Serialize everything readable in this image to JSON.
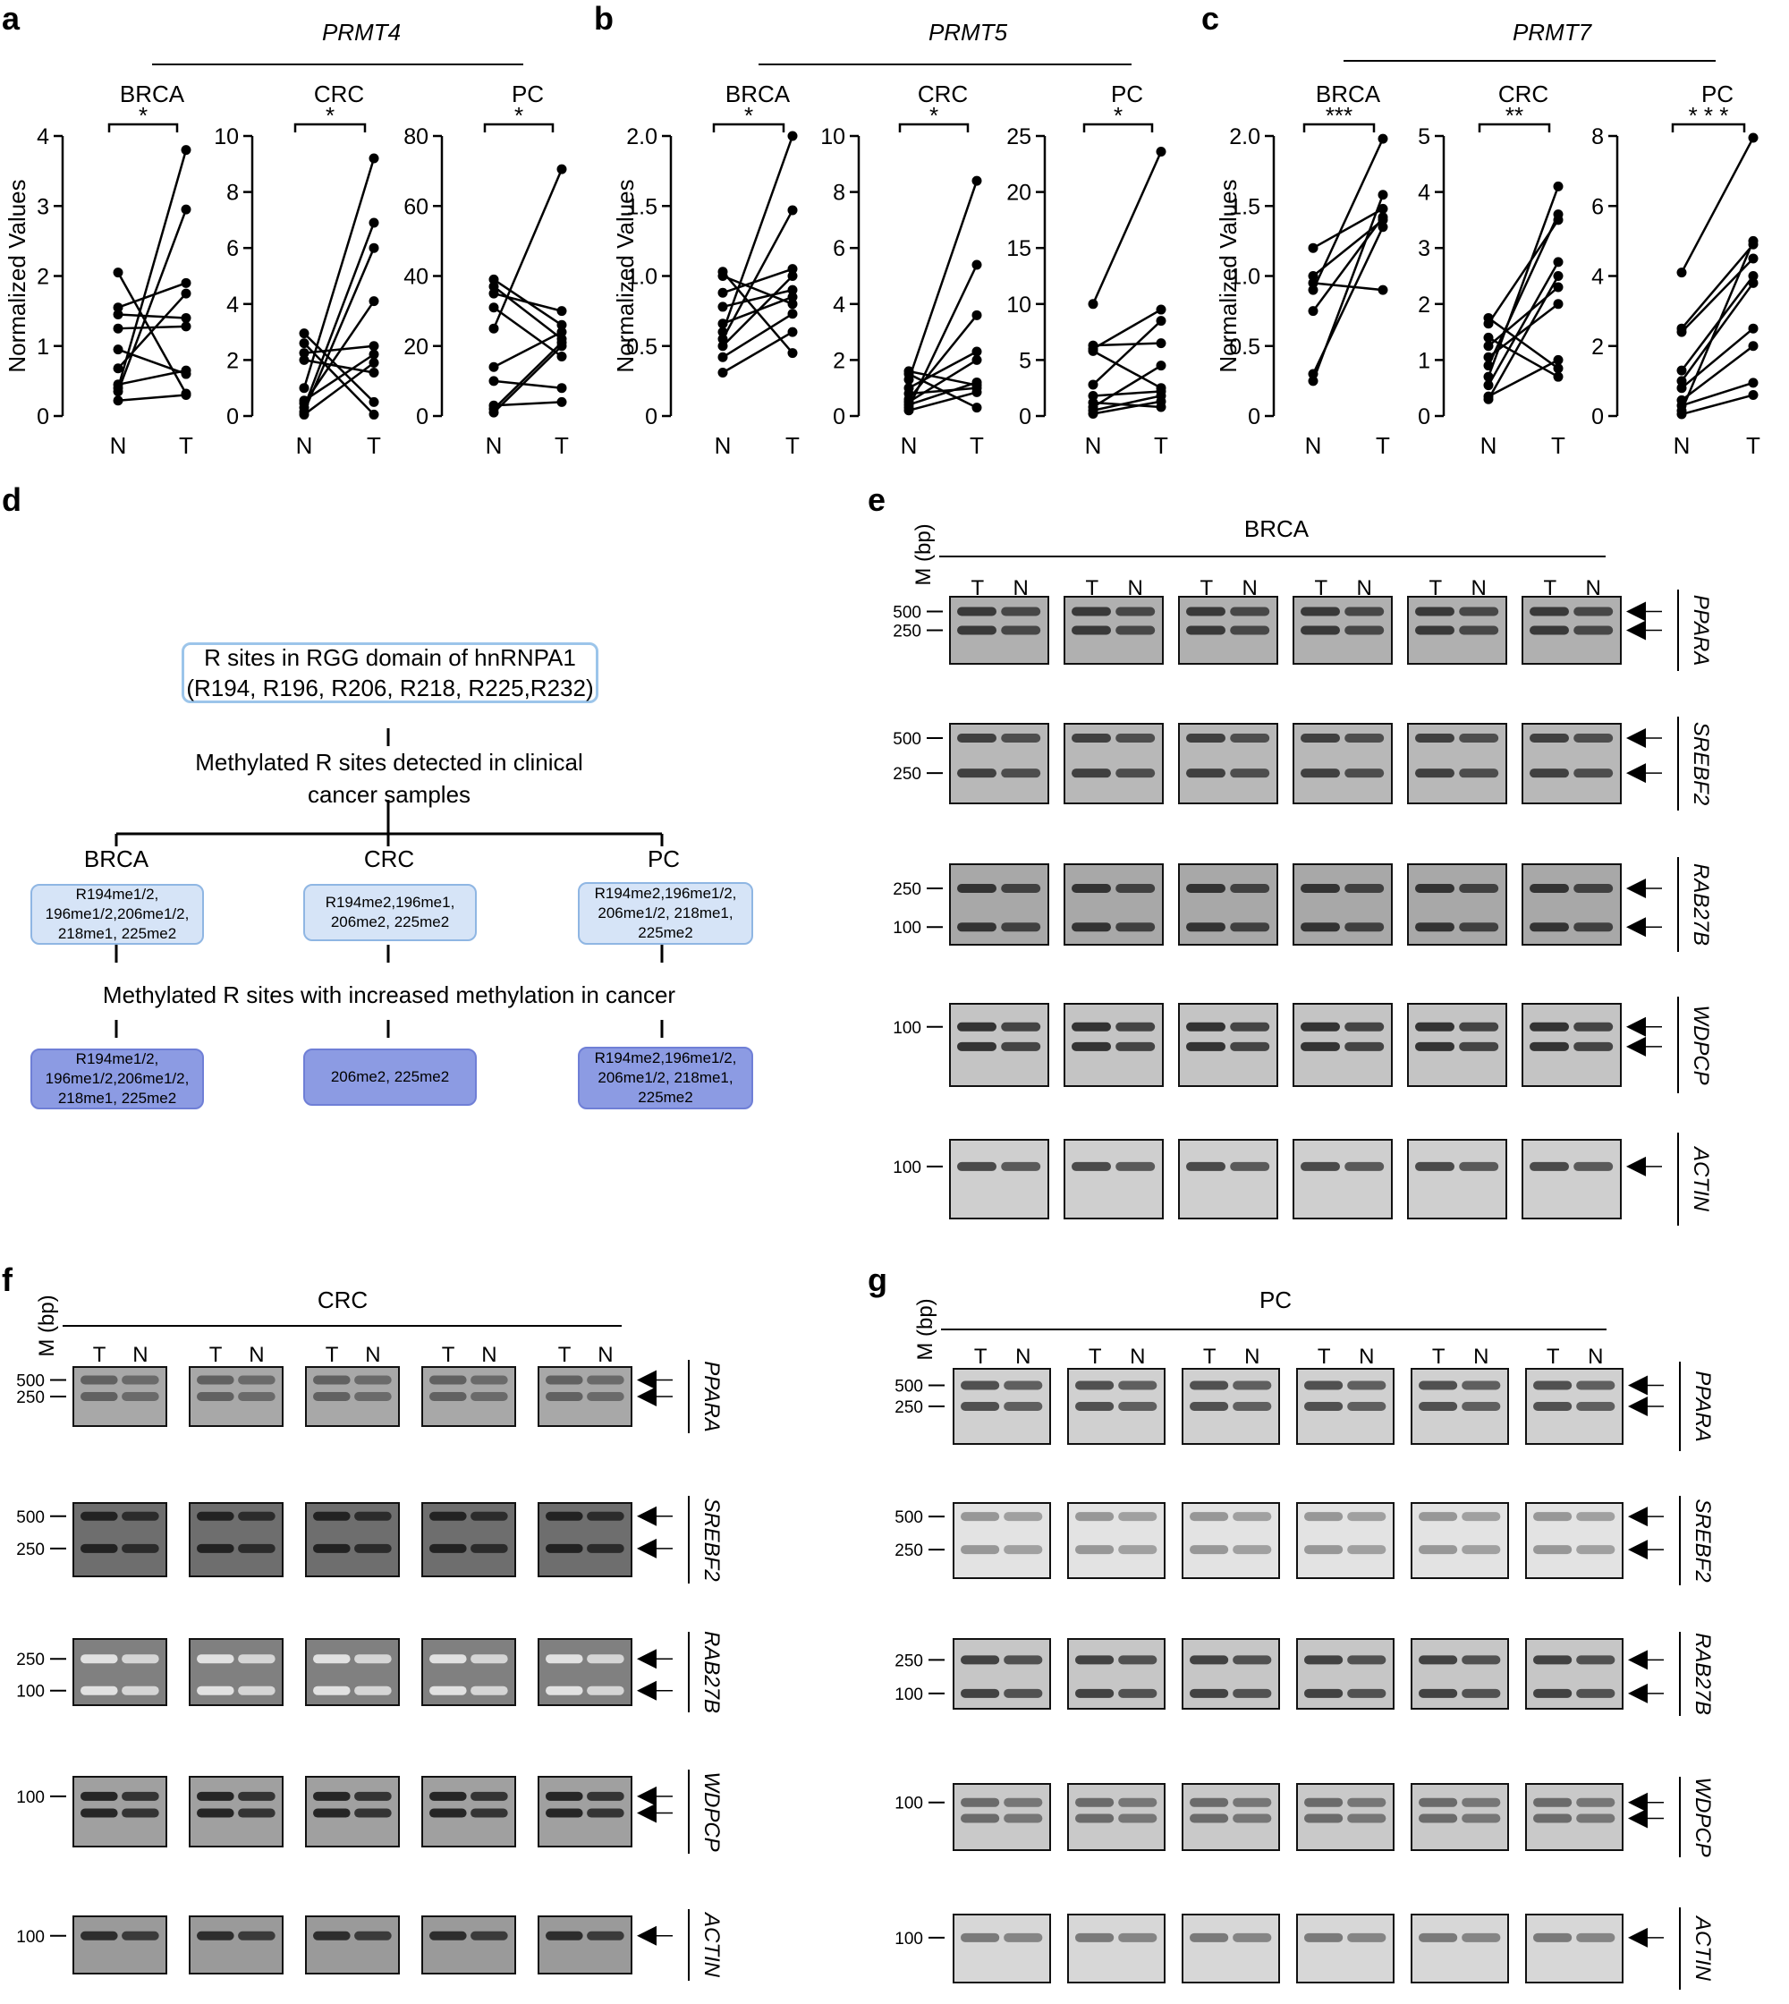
{
  "panel_letters": {
    "a": "a",
    "b": "b",
    "c": "c",
    "d": "d",
    "e": "e",
    "f": "f",
    "g": "g"
  },
  "chart_data": [
    {
      "panel": "a",
      "gene": "PRMT4",
      "type": "line",
      "cancer": "BRCA",
      "significance": "*",
      "ylabel": "Normalized Values",
      "ylim": [
        0,
        4
      ],
      "yticks": [
        "0",
        "1",
        "2",
        "3",
        "4"
      ],
      "xticks": [
        "N",
        "T"
      ],
      "pairs": [
        [
          2.05,
          0.32
        ],
        [
          1.55,
          1.9
        ],
        [
          1.45,
          1.4
        ],
        [
          1.25,
          1.28
        ],
        [
          0.95,
          0.6
        ],
        [
          0.68,
          1.75
        ],
        [
          0.45,
          0.65
        ],
        [
          0.4,
          3.8
        ],
        [
          0.35,
          2.95
        ],
        [
          0.22,
          0.3
        ]
      ]
    },
    {
      "panel": "a",
      "gene": "PRMT4",
      "type": "line",
      "cancer": "CRC",
      "significance": "*",
      "ylabel": "",
      "ylim": [
        0,
        10
      ],
      "yticks": [
        "0",
        "2",
        "4",
        "6",
        "8",
        "10"
      ],
      "xticks": [
        "N",
        "T"
      ],
      "pairs": [
        [
          2.95,
          0.5
        ],
        [
          2.6,
          0.05
        ],
        [
          2.25,
          2.5
        ],
        [
          2.0,
          1.55
        ],
        [
          1.0,
          9.2
        ],
        [
          0.55,
          2.2
        ],
        [
          0.45,
          4.1
        ],
        [
          0.3,
          6.9
        ],
        [
          0.15,
          6.0
        ],
        [
          0.05,
          1.9
        ]
      ]
    },
    {
      "panel": "a",
      "gene": "PRMT4",
      "type": "line",
      "cancer": "PC",
      "significance": "*",
      "ylabel": "",
      "ylim": [
        0,
        80
      ],
      "yticks": [
        "0",
        "20",
        "40",
        "60",
        "80"
      ],
      "xticks": [
        "N",
        "T"
      ],
      "pairs": [
        [
          39,
          26
        ],
        [
          37,
          22
        ],
        [
          35,
          30
        ],
        [
          31,
          17
        ],
        [
          25,
          70.5
        ],
        [
          14,
          24
        ],
        [
          10,
          8
        ],
        [
          3,
          4
        ],
        [
          2,
          21
        ],
        [
          1,
          20
        ]
      ]
    },
    {
      "panel": "b",
      "gene": "PRMT5",
      "type": "line",
      "cancer": "BRCA",
      "significance": "*",
      "ylabel": "Normalized Values",
      "ylim": [
        0,
        2.0
      ],
      "yticks": [
        "0",
        "0.5",
        "1.0",
        "1.5",
        "2.0"
      ],
      "xticks": [
        "N",
        "T"
      ],
      "pairs": [
        [
          1.03,
          0.45
        ],
        [
          1.0,
          0.8
        ],
        [
          0.88,
          1.05
        ],
        [
          0.78,
          0.9
        ],
        [
          0.66,
          0.85
        ],
        [
          0.6,
          2.0
        ],
        [
          0.55,
          1.47
        ],
        [
          0.5,
          1.0
        ],
        [
          0.42,
          0.73
        ],
        [
          0.31,
          0.6
        ]
      ]
    },
    {
      "panel": "b",
      "gene": "PRMT5",
      "type": "line",
      "cancer": "CRC",
      "significance": "*",
      "ylabel": "",
      "ylim": [
        0,
        10
      ],
      "yticks": [
        "0",
        "2",
        "4",
        "6",
        "8",
        "10"
      ],
      "xticks": [
        "N",
        "T"
      ],
      "pairs": [
        [
          1.6,
          1.1
        ],
        [
          1.5,
          0.3
        ],
        [
          1.3,
          8.4
        ],
        [
          1.0,
          2.3
        ],
        [
          0.8,
          1.0
        ],
        [
          0.6,
          3.6
        ],
        [
          0.5,
          2.0
        ],
        [
          0.4,
          1.2
        ],
        [
          0.3,
          5.4
        ],
        [
          0.2,
          0.85
        ]
      ]
    },
    {
      "panel": "b",
      "gene": "PRMT5",
      "type": "line",
      "cancer": "PC",
      "significance": "*",
      "ylabel": "",
      "ylim": [
        0,
        25
      ],
      "yticks": [
        "0",
        "5",
        "10",
        "15",
        "20",
        "25"
      ],
      "xticks": [
        "N",
        "T"
      ],
      "pairs": [
        [
          10,
          23.6
        ],
        [
          6.3,
          6.5
        ],
        [
          6,
          9.5
        ],
        [
          5.8,
          2.5
        ],
        [
          2.8,
          8.5
        ],
        [
          1.8,
          2.2
        ],
        [
          1.2,
          0.8
        ],
        [
          0.8,
          4.5
        ],
        [
          0.5,
          1.8
        ],
        [
          0.2,
          1.3
        ]
      ]
    },
    {
      "panel": "c",
      "gene": "PRMT7",
      "type": "line",
      "cancer": "BRCA",
      "significance": "***",
      "ylabel": "Normalized Values",
      "ylim": [
        0,
        2.0
      ],
      "yticks": [
        "0",
        "0.5",
        "1.0",
        "1.5",
        "2.0"
      ],
      "xticks": [
        "N",
        "T"
      ],
      "pairs": [
        [
          1.2,
          1.48
        ],
        [
          1.0,
          1.4
        ],
        [
          0.95,
          0.9
        ],
        [
          0.9,
          1.98
        ],
        [
          0.75,
          1.42
        ],
        [
          0.3,
          1.35
        ],
        [
          0.25,
          1.58
        ]
      ]
    },
    {
      "panel": "c",
      "gene": "PRMT7",
      "type": "line",
      "cancer": "CRC",
      "significance": "**",
      "ylabel": "",
      "ylim": [
        0,
        5
      ],
      "yticks": [
        "0",
        "1",
        "2",
        "3",
        "4",
        "5"
      ],
      "xticks": [
        "N",
        "T"
      ],
      "pairs": [
        [
          1.75,
          0.85
        ],
        [
          1.65,
          3.5
        ],
        [
          1.4,
          0.7
        ],
        [
          1.25,
          2.3
        ],
        [
          1.05,
          2.0
        ],
        [
          0.9,
          3.6
        ],
        [
          0.7,
          4.1
        ],
        [
          0.55,
          2.75
        ],
        [
          0.35,
          1.0
        ],
        [
          0.3,
          2.5
        ]
      ]
    },
    {
      "panel": "c",
      "gene": "PRMT7",
      "type": "line",
      "cancer": "PC",
      "significance": "* * *",
      "ylabel": "",
      "ylim": [
        0,
        8
      ],
      "yticks": [
        "0",
        "2",
        "4",
        "6",
        "8"
      ],
      "xticks": [
        "N",
        "T"
      ],
      "pairs": [
        [
          4.1,
          7.95
        ],
        [
          2.5,
          4.9
        ],
        [
          2.4,
          4.5
        ],
        [
          1.3,
          4.0
        ],
        [
          1.0,
          3.8
        ],
        [
          0.8,
          2.5
        ],
        [
          0.45,
          2.0
        ],
        [
          0.3,
          0.95
        ],
        [
          0.15,
          5.0
        ],
        [
          0.05,
          0.6
        ]
      ]
    }
  ],
  "panel_d": {
    "title_box": "R sites in RGG domain of hnRNPA1\n(R194, R196, R206, R218, R225,R232)",
    "methylated_text": "Methylated R sites detected in clinical\ncancer samples",
    "cancers": [
      "BRCA",
      "CRC",
      "PC"
    ],
    "detected": [
      "R194me1/2,\n196me1/2,206me1/2,\n218me1, 225me2",
      "R194me2,196me1,\n206me2, 225me2",
      "R194me2,196me1/2,\n206me1/2, 218me1,\n225me2"
    ],
    "increased_text": "Methylated R sites with increased methylation in cancer",
    "increased": [
      "R194me1/2,\n196me1/2,206me1/2,\n218me1, 225me2",
      "206me2, 225me2",
      "R194me2,196me1/2,\n206me1/2, 218me1,\n225me2"
    ]
  },
  "gels": {
    "marker_label": "M (bp)",
    "lane_T": "T",
    "lane_N": "N",
    "genes": [
      "PPARA",
      "SREBF2",
      "RAB27B",
      "WDPCP",
      "ACTIN"
    ],
    "marker_ticks": [
      [
        "500",
        "250"
      ],
      [
        "500",
        "250"
      ],
      [
        "250",
        "100"
      ],
      [
        "100"
      ],
      [
        "100"
      ]
    ],
    "e": {
      "cancer": "BRCA",
      "samples": 6
    },
    "f": {
      "cancer": "CRC",
      "samples": 5
    },
    "g": {
      "cancer": "PC",
      "samples": 6
    }
  },
  "colors": {
    "flow_light": "#d6e4f7",
    "flow_dark": "#8c9be3"
  }
}
